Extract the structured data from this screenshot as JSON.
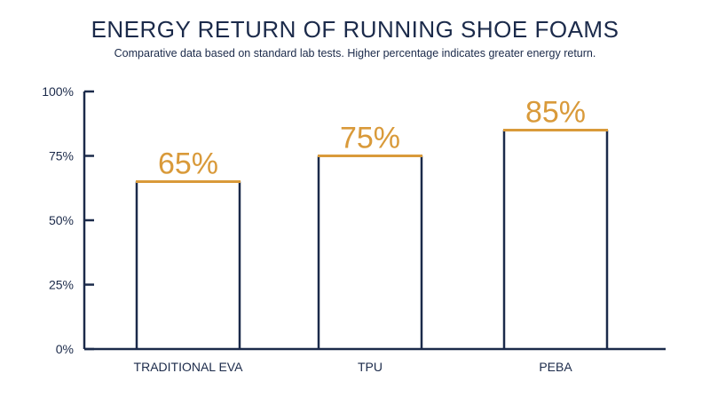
{
  "title": "ENERGY RETURN OF RUNNING SHOE FOAMS",
  "subtitle": "Comparative data based on standard lab tests. Higher percentage indicates greater energy return.",
  "colors": {
    "axis": "#1b2a4a",
    "accent": "#d99a3a",
    "text": "#1b2a4a"
  },
  "chart_data": {
    "type": "bar",
    "title": "ENERGY RETURN OF RUNNING SHOE FOAMS",
    "subtitle": "Comparative data based on standard lab tests. Higher percentage indicates greater energy return.",
    "categories": [
      "TRADITIONAL EVA",
      "TPU",
      "PEBA"
    ],
    "values": [
      65,
      75,
      85
    ],
    "value_labels": [
      "65%",
      "75%",
      "85%"
    ],
    "ylim": [
      0,
      100
    ],
    "yticks": [
      0,
      25,
      50,
      75,
      100
    ],
    "ytick_labels": [
      "0%",
      "25%",
      "50%",
      "75%",
      "100%"
    ],
    "xlabel": "",
    "ylabel": "",
    "grid": false
  }
}
